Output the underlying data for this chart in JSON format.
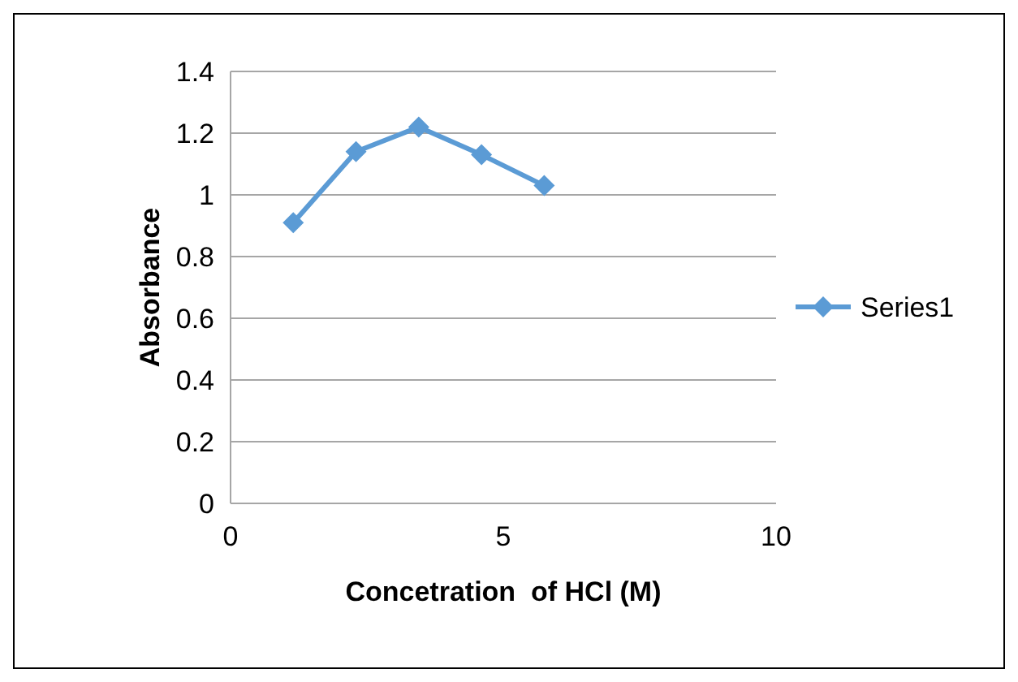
{
  "chart_data": {
    "type": "line",
    "xlabel": "Concetration  of HCl (M)",
    "ylabel": "Absorbance",
    "xlim": [
      0,
      10
    ],
    "xticks": [
      0,
      5,
      10
    ],
    "ylim": [
      0,
      1.4
    ],
    "yticks": [
      0,
      0.2,
      0.4,
      0.6,
      0.8,
      1,
      1.2,
      1.4
    ],
    "grid": "y",
    "legend": "right",
    "marker": "diamond",
    "line_style": "solid",
    "series": [
      {
        "name": "Series1",
        "color": "#5b9bd5",
        "x": [
          1.15,
          2.3,
          3.45,
          4.6,
          5.75
        ],
        "values": [
          0.91,
          1.14,
          1.22,
          1.13,
          1.03
        ]
      }
    ]
  }
}
